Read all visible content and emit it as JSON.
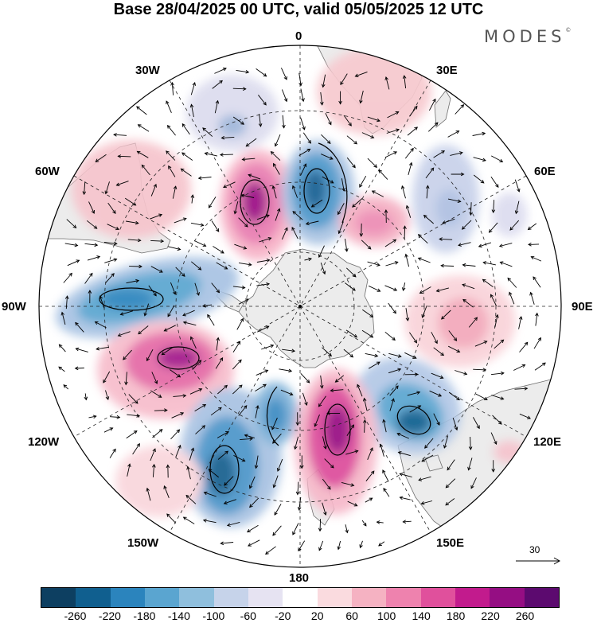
{
  "title": "Base 28/04/2025 00 UTC, valid 05/05/2025 12 UTC",
  "brand": "MODES",
  "brand_mark": "©",
  "longitude_labels": {
    "lon_0": "0",
    "lon_30e": "30E",
    "lon_60e": "60E",
    "lon_90e": "90E",
    "lon_120e": "120E",
    "lon_150e": "150E",
    "lon_180": "180",
    "lon_150w": "150W",
    "lon_120w": "120W",
    "lon_90w": "90W",
    "lon_60w": "60W",
    "lon_30w": "30W"
  },
  "vector_reference": "30",
  "colorbar": {
    "colors": [
      "#0d3f61",
      "#105f8f",
      "#2b84bd",
      "#5aa5d0",
      "#8fbfdd",
      "#c6d3ea",
      "#e6e3f2",
      "#ffffff",
      "#fadbdf",
      "#f5b2c2",
      "#ee82ae",
      "#e0509c",
      "#c21b8d",
      "#950e83",
      "#5c0a6f"
    ],
    "ticks": [
      "-260",
      "-220",
      "-180",
      "-140",
      "-100",
      "-60",
      "-20",
      "20",
      "60",
      "100",
      "140",
      "180",
      "220",
      "260"
    ]
  },
  "anomaly_centers": [
    {
      "name": "positive-anomaly-60w",
      "value": 60
    },
    {
      "name": "negative-anomaly-30w",
      "value": -60
    },
    {
      "name": "positive-anomaly-30w-center",
      "value": 220
    },
    {
      "name": "negative-anomaly-10e",
      "value": -180
    },
    {
      "name": "positive-anomaly-30e-upper",
      "value": 60
    },
    {
      "name": "positive-anomaly-40e",
      "value": 140
    },
    {
      "name": "negative-anomaly-60e",
      "value": -60
    },
    {
      "name": "negative-anomaly-80w",
      "value": -180
    },
    {
      "name": "positive-anomaly-90e",
      "value": 100
    },
    {
      "name": "positive-anomaly-110w",
      "value": 180
    },
    {
      "name": "negative-anomaly-120e",
      "value": -180
    },
    {
      "name": "negative-anomaly-150w",
      "value": -180
    },
    {
      "name": "negative-anomaly-165w",
      "value": -140
    },
    {
      "name": "positive-anomaly-165e",
      "value": 220
    }
  ]
}
